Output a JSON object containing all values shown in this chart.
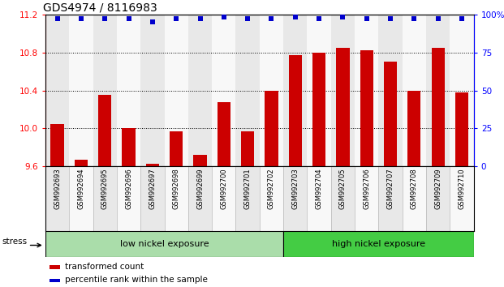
{
  "title": "GDS4974 / 8116983",
  "samples": [
    "GSM992693",
    "GSM992694",
    "GSM992695",
    "GSM992696",
    "GSM992697",
    "GSM992698",
    "GSM992699",
    "GSM992700",
    "GSM992701",
    "GSM992702",
    "GSM992703",
    "GSM992704",
    "GSM992705",
    "GSM992706",
    "GSM992707",
    "GSM992708",
    "GSM992709",
    "GSM992710"
  ],
  "bar_values": [
    10.05,
    9.67,
    10.35,
    10.0,
    9.63,
    9.97,
    9.72,
    10.28,
    9.97,
    10.4,
    10.77,
    10.8,
    10.85,
    10.82,
    10.7,
    10.4,
    10.85,
    10.38
  ],
  "percentile_values": [
    97,
    97,
    97,
    97,
    95,
    97,
    97,
    98,
    97,
    97,
    98,
    97,
    98,
    97,
    97,
    97,
    97,
    97
  ],
  "bar_color": "#cc0000",
  "dot_color": "#0000cc",
  "ylim_left": [
    9.6,
    11.2
  ],
  "ylim_right": [
    0,
    100
  ],
  "yticks_left": [
    9.6,
    10.0,
    10.4,
    10.8,
    11.2
  ],
  "yticks_right": [
    0,
    25,
    50,
    75,
    100
  ],
  "ytick_labels_right": [
    "0",
    "25",
    "50",
    "75",
    "100%"
  ],
  "grid_values": [
    10.0,
    10.4,
    10.8
  ],
  "low_nickel_label": "low nickel exposure",
  "high_nickel_label": "high nickel exposure",
  "low_nickel_count": 10,
  "high_nickel_count": 8,
  "stress_label": "stress",
  "legend_bar_label": "transformed count",
  "legend_dot_label": "percentile rank within the sample",
  "col_bg_even": "#e8e8e8",
  "col_bg_odd": "#f8f8f8",
  "low_nickel_color": "#aaddaa",
  "high_nickel_color": "#44cc44",
  "title_fontsize": 10,
  "tick_fontsize": 7.5,
  "sample_fontsize": 6,
  "legend_fontsize": 7.5
}
